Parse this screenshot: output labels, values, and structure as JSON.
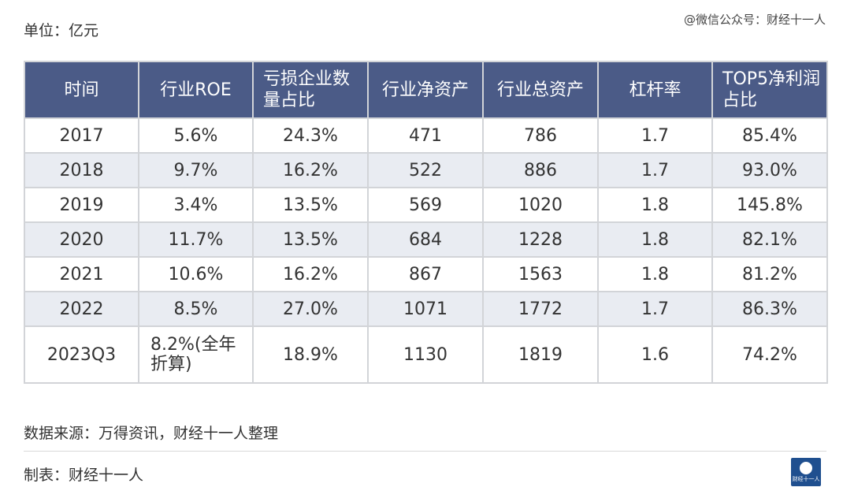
{
  "unit_label": "单位：亿元",
  "watermark": "@微信公众号：财经十一人",
  "table": {
    "headers": [
      "时间",
      "行业ROE",
      "亏损企业数量占比",
      "行业净资产",
      "行业总资产",
      "杠杆率",
      "TOP5净利润占比"
    ],
    "rows": [
      [
        "2017",
        "5.6%",
        "24.3%",
        "471",
        "786",
        "1.7",
        "85.4%"
      ],
      [
        "2018",
        "9.7%",
        "16.2%",
        "522",
        "886",
        "1.7",
        "93.0%"
      ],
      [
        "2019",
        "3.4%",
        "13.5%",
        "569",
        "1020",
        "1.8",
        "145.8%"
      ],
      [
        "2020",
        "11.7%",
        "13.5%",
        "684",
        "1228",
        "1.8",
        "82.1%"
      ],
      [
        "2021",
        "10.6%",
        "16.2%",
        "867",
        "1563",
        "1.8",
        "81.2%"
      ],
      [
        "2022",
        "8.5%",
        "27.0%",
        "1071",
        "1772",
        "1.7",
        "86.3%"
      ],
      [
        "2023Q3",
        "8.2%(全年折算)",
        "18.9%",
        "1130",
        "1819",
        "1.6",
        "74.2%"
      ]
    ]
  },
  "source": "数据来源：万得资讯，财经十一人整理",
  "maker": "制表：财经十一人",
  "logo_text": "财经十一人",
  "colors": {
    "header_bg": "#4b5b87",
    "stripe_bg": "#e9ecf2",
    "border": "#d2d4d8"
  }
}
